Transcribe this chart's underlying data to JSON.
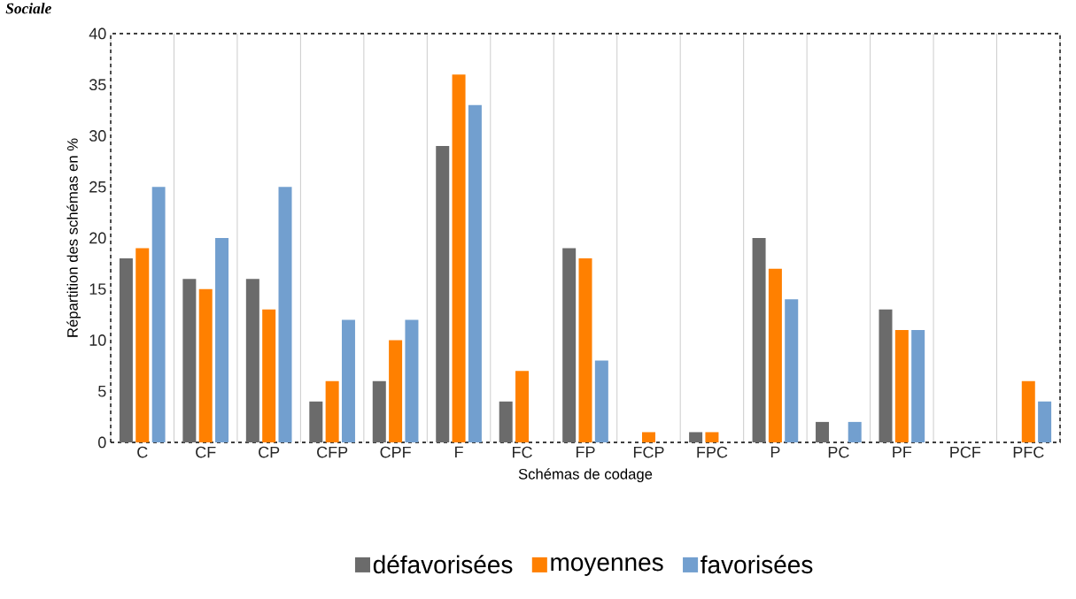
{
  "chart_data": {
    "type": "bar",
    "annotations": [
      "Sociale"
    ],
    "xlabel": "Schémas de codage",
    "ylabel": "Répartition des schémas en %",
    "categories": [
      "C",
      "CF",
      "CP",
      "CFP",
      "CPF",
      "F",
      "FC",
      "FP",
      "FCP",
      "FPC",
      "P",
      "PC",
      "PF",
      "PCF",
      "PFC"
    ],
    "series": [
      {
        "name": "défavorisées",
        "color": "#6b6b6b",
        "values": [
          18,
          16,
          16,
          4,
          6,
          29,
          4,
          19,
          0,
          1,
          20,
          2,
          13,
          0,
          0
        ]
      },
      {
        "name": "moyennes",
        "color": "#ff8000",
        "values": [
          19,
          15,
          13,
          6,
          10,
          36,
          7,
          18,
          1,
          1,
          17,
          0,
          11,
          0,
          6
        ]
      },
      {
        "name": "favorisées",
        "color": "#729fcf",
        "values": [
          25,
          20,
          25,
          12,
          12,
          33,
          0,
          8,
          0,
          0,
          14,
          2,
          11,
          0,
          4
        ]
      }
    ],
    "ylim": [
      0,
      40
    ],
    "yticks": [
      0,
      5,
      10,
      15,
      20,
      25,
      30,
      35,
      40
    ],
    "grid": "x",
    "legend": "bottom"
  }
}
